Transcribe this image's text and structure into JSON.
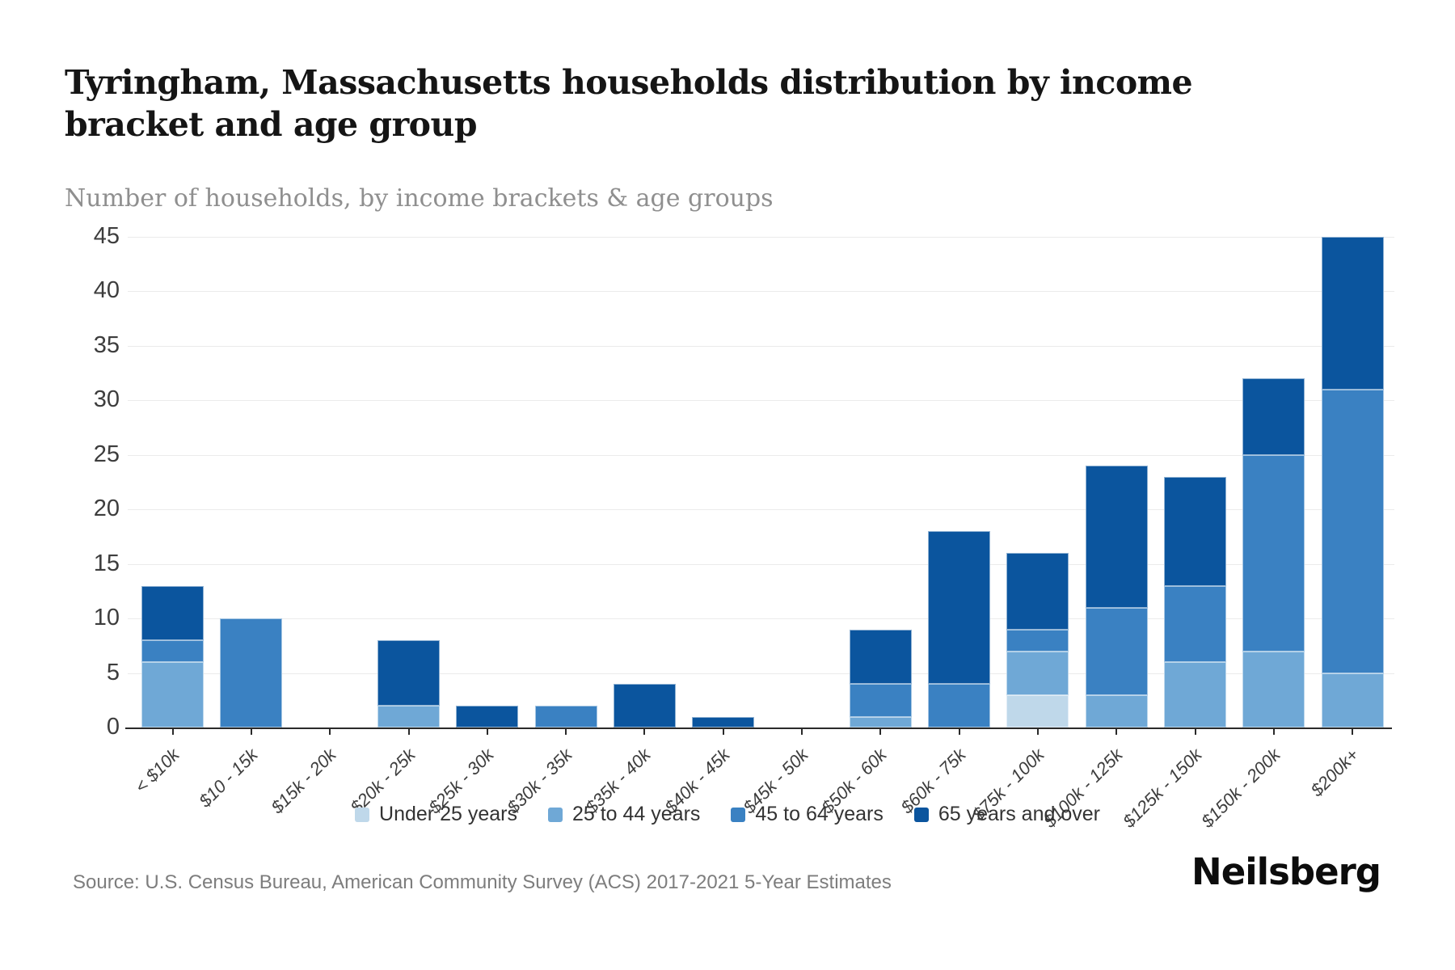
{
  "header": {
    "title": "Tyringham, Massachusetts households distribution by income bracket and age group",
    "subtitle": "Number of households, by income brackets & age groups"
  },
  "chart_data": {
    "type": "bar",
    "stacked": true,
    "title": "Tyringham, Massachusetts households distribution by income bracket and age group",
    "subtitle": "Number of households, by income brackets & age groups",
    "categories": [
      "< $10k",
      "$10 - 15k",
      "$15k - 20k",
      "$20k - 25k",
      "$25k - 30k",
      "$30k - 35k",
      "$35k - 40k",
      "$40k - 45k",
      "$45k - 50k",
      "$50k - 60k",
      "$60k - 75k",
      "$75k - 100k",
      "$100k - 125k",
      "$125k - 150k",
      "$150k - 200k",
      "$200k+"
    ],
    "series": [
      {
        "name": "Under 25 years",
        "color": "#bfd8ea",
        "values": [
          0,
          0,
          0,
          0,
          0,
          0,
          0,
          0,
          0,
          0,
          0,
          3,
          0,
          0,
          0,
          0
        ]
      },
      {
        "name": "25 to 44 years",
        "color": "#6fa8d6",
        "values": [
          6,
          0,
          0,
          2,
          0,
          0,
          0,
          0,
          0,
          1,
          0,
          4,
          3,
          6,
          7,
          5
        ]
      },
      {
        "name": "45 to 64 years",
        "color": "#3a81c2",
        "values": [
          2,
          10,
          0,
          0,
          0,
          2,
          0,
          0,
          0,
          3,
          4,
          2,
          8,
          7,
          18,
          26
        ]
      },
      {
        "name": "65 years and over",
        "color": "#0b559e",
        "values": [
          5,
          0,
          0,
          6,
          2,
          0,
          4,
          1,
          0,
          5,
          14,
          7,
          13,
          10,
          7,
          14
        ]
      }
    ],
    "totals": [
      13,
      10,
      0,
      8,
      2,
      2,
      4,
      1,
      0,
      9,
      18,
      16,
      24,
      23,
      32,
      45
    ],
    "ylim": [
      0,
      45
    ],
    "yticks": [
      0,
      5,
      10,
      15,
      20,
      25,
      30,
      35,
      40,
      45
    ],
    "grid": "horizontal",
    "legend_position": "bottom",
    "xlabel": "",
    "ylabel": ""
  },
  "footer": {
    "source": "Source: U.S. Census Bureau, American Community Survey (ACS) 2017-2021 5-Year Estimates",
    "brand": "Neilsberg"
  }
}
